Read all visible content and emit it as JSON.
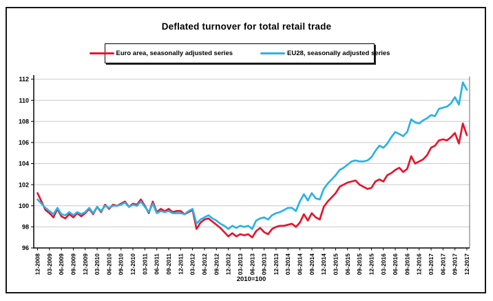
{
  "chart": {
    "title": "Deflated turnover for total retail trade",
    "footnote": "2010=100"
  },
  "chart_data": {
    "type": "line",
    "title": "Deflated turnover for total retail trade",
    "note": "2010=100",
    "x_frequency": "monthly",
    "x_start": "12-2008",
    "x_end": "12-2017",
    "ylim": [
      96,
      112
    ],
    "y_ticks": [
      96,
      98,
      100,
      102,
      104,
      106,
      108,
      110,
      112
    ],
    "grid": true,
    "legend_position": "top",
    "tick_labels": [
      "12-2008",
      "03-2009",
      "06-2009",
      "09-2009",
      "12-2009",
      "03-2010",
      "06-2010",
      "09-2010",
      "12-2010",
      "03-2011",
      "06-2011",
      "09-2011",
      "12-2011",
      "03-2012",
      "06-2012",
      "09-2012",
      "12-2012",
      "03-2013",
      "06-2013",
      "09-2013",
      "12-2013",
      "03-2014",
      "06-2014",
      "09-2014",
      "12-2014",
      "03-2015",
      "06-2015",
      "09-2015",
      "12-2015",
      "03-2016",
      "06-2016",
      "09-2016",
      "12-2016",
      "03-2017",
      "06-2017",
      "09-2017",
      "12-2017"
    ],
    "series": [
      {
        "name": "Euro area, seasonally adjusted series",
        "color": "#e8132b",
        "values": [
          101.2,
          100.4,
          99.6,
          99.3,
          98.9,
          99.7,
          99.0,
          98.8,
          99.2,
          98.9,
          99.3,
          99.0,
          99.3,
          99.7,
          99.2,
          99.9,
          99.4,
          100.1,
          99.7,
          100.1,
          100.0,
          100.2,
          100.4,
          99.9,
          100.2,
          100.1,
          100.6,
          100.0,
          99.3,
          100.4,
          99.4,
          99.7,
          99.5,
          99.7,
          99.4,
          99.5,
          99.5,
          99.2,
          99.4,
          99.6,
          97.8,
          98.4,
          98.7,
          98.8,
          98.5,
          98.2,
          97.9,
          97.5,
          97.1,
          97.4,
          97.1,
          97.3,
          97.2,
          97.3,
          97.0,
          97.6,
          97.9,
          97.5,
          97.3,
          97.8,
          98.0,
          98.1,
          98.1,
          98.2,
          98.3,
          98.0,
          98.4,
          99.2,
          98.6,
          99.3,
          98.9,
          98.7,
          99.9,
          100.4,
          100.8,
          101.2,
          101.8,
          102.0,
          102.2,
          102.3,
          102.4,
          102.0,
          101.8,
          101.6,
          101.7,
          102.3,
          102.5,
          102.3,
          102.9,
          103.1,
          103.4,
          103.6,
          103.2,
          103.5,
          104.7,
          104.0,
          104.2,
          104.4,
          104.8,
          105.5,
          105.7,
          106.2,
          106.3,
          106.2,
          106.5,
          106.9,
          105.9,
          107.8,
          106.7
        ]
      },
      {
        "name": "EU28, seasonally adjusted series",
        "color": "#29b2e8",
        "values": [
          100.6,
          100.2,
          99.8,
          99.5,
          99.2,
          99.8,
          99.2,
          99.1,
          99.4,
          99.1,
          99.4,
          99.2,
          99.4,
          99.8,
          99.3,
          99.9,
          99.5,
          100.0,
          99.8,
          100.0,
          100.0,
          100.1,
          100.3,
          99.9,
          100.1,
          100.0,
          100.4,
          99.9,
          99.4,
          100.2,
          99.3,
          99.5,
          99.4,
          99.5,
          99.3,
          99.3,
          99.3,
          99.2,
          99.5,
          99.7,
          98.3,
          98.7,
          98.9,
          99.1,
          98.8,
          98.6,
          98.3,
          98.1,
          97.8,
          98.1,
          97.9,
          98.1,
          98.0,
          98.1,
          97.8,
          98.6,
          98.8,
          98.9,
          98.7,
          99.1,
          99.3,
          99.4,
          99.6,
          99.8,
          99.8,
          99.5,
          100.4,
          101.1,
          100.5,
          101.2,
          100.7,
          100.6,
          101.6,
          102.1,
          102.5,
          102.9,
          103.4,
          103.6,
          103.9,
          104.2,
          104.3,
          104.2,
          104.2,
          104.3,
          104.6,
          105.2,
          105.7,
          105.5,
          105.9,
          106.5,
          107.0,
          106.8,
          106.6,
          107.0,
          108.2,
          107.9,
          107.8,
          108.1,
          108.3,
          108.6,
          108.5,
          109.2,
          109.3,
          109.4,
          109.7,
          110.3,
          109.6,
          111.7,
          111.0
        ]
      }
    ],
    "style": {
      "gridline_color": "#c9c9c9",
      "axis_color": "#000000",
      "plot_right_border_color": "#6b6b6b"
    }
  }
}
